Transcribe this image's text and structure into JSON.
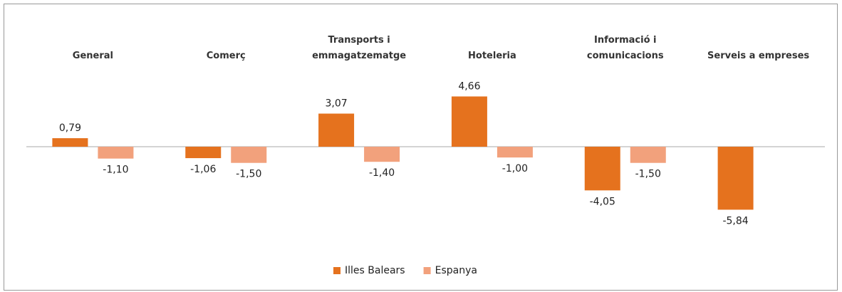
{
  "chart_data": {
    "type": "bar",
    "categories": [
      "General",
      "Comerç",
      "Transports i emmagatzematge",
      "Hoteleria",
      "Informació i comunicacions",
      "Serveis a empreses"
    ],
    "series": [
      {
        "name": "Illes Balears",
        "color": "#e5721e",
        "values": [
          0.79,
          -1.06,
          3.07,
          4.66,
          -4.05,
          -5.84
        ],
        "value_labels": [
          "0,79",
          "-1,06",
          "3,07",
          "4,66",
          "-4,05",
          "-5,84"
        ]
      },
      {
        "name": "Espanya",
        "color": "#f2a17c",
        "values": [
          -1.1,
          -1.5,
          -1.4,
          -1.0,
          -1.5,
          null
        ],
        "value_labels": [
          "-1,10",
          "-1,50",
          "-1,40",
          "-1,00",
          "-1,50",
          null
        ]
      }
    ],
    "ylim": [
      -7,
      7
    ],
    "legend": "bottom"
  }
}
